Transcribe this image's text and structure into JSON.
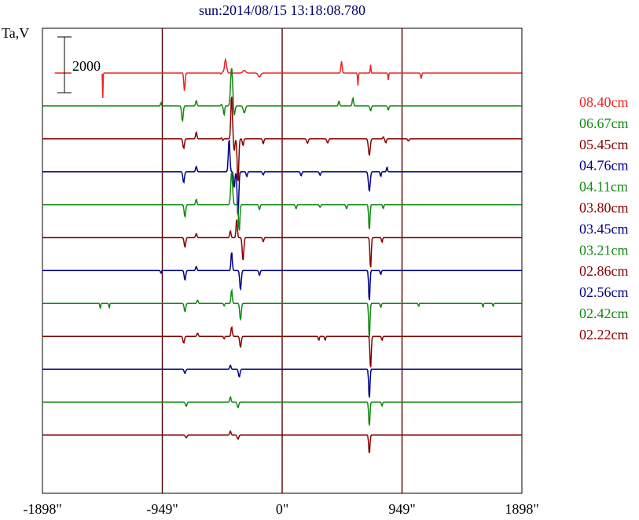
{
  "chart_data": {
    "type": "line",
    "title": "sun:2014/08/15 13:18:08.780",
    "ylabel": "Ta,V",
    "scale_bar_label": "2000",
    "x_ticks": [
      {
        "value": -1898,
        "label": "-1898\""
      },
      {
        "value": -949,
        "label": "-949\""
      },
      {
        "value": 0,
        "label": "0\""
      },
      {
        "value": 949,
        "label": "949\""
      },
      {
        "value": 1898,
        "label": "1898\""
      }
    ],
    "xlim": [
      -1898,
      1898
    ],
    "vertical_gridlines_at": [
      -949,
      0,
      949
    ],
    "colors": {
      "red": "#ee2222",
      "green": "#118811",
      "darkred": "#880000",
      "blue": "#000088",
      "title": "#000066",
      "axis": "#000000",
      "grid": "#550000"
    },
    "series": [
      {
        "name": "08.40cm",
        "color": "red",
        "features": [
          [
            -1420,
            -900,
            0.02
          ],
          [
            -774,
            -650,
            0.05
          ],
          [
            -460,
            -120,
            0.05
          ],
          [
            -485,
            -30,
            0.03
          ],
          [
            -470,
            25,
            0.04
          ],
          [
            -450,
            500,
            0.09
          ],
          [
            -300,
            100,
            0.11
          ],
          [
            -180,
            -140,
            0.1
          ],
          [
            470,
            420,
            0.05
          ],
          [
            600,
            -450,
            0.03
          ],
          [
            700,
            300,
            0.03
          ],
          [
            840,
            -250,
            0.03
          ],
          [
            1100,
            -200,
            0.04
          ]
        ]
      },
      {
        "name": "06.67cm",
        "color": "green",
        "features": [
          [
            -960,
            150,
            0.03
          ],
          [
            -790,
            -550,
            0.06
          ],
          [
            -680,
            200,
            0.05
          ],
          [
            -460,
            -350,
            0.04
          ],
          [
            -480,
            60,
            0.05
          ],
          [
            -470,
            -40,
            0.04
          ],
          [
            -400,
            1400,
            0.08
          ],
          [
            -380,
            -380,
            0.06
          ],
          [
            -300,
            -250,
            0.08
          ],
          [
            450,
            180,
            0.05
          ],
          [
            560,
            300,
            0.05
          ],
          [
            700,
            -180,
            0.05
          ],
          [
            840,
            -150,
            0.05
          ]
        ]
      },
      {
        "name": "05.45cm",
        "color": "darkred",
        "features": [
          [
            -780,
            -350,
            0.06
          ],
          [
            -680,
            250,
            0.05
          ],
          [
            -470,
            -60,
            0.04
          ],
          [
            -480,
            40,
            0.04
          ],
          [
            -400,
            1600,
            0.06
          ],
          [
            -380,
            -450,
            0.05
          ],
          [
            -350,
            -1600,
            0.06
          ],
          [
            -310,
            -250,
            0.05
          ],
          [
            -150,
            -180,
            0.05
          ],
          [
            200,
            -160,
            0.06
          ],
          [
            360,
            -150,
            0.06
          ],
          [
            690,
            -600,
            0.07
          ],
          [
            820,
            -150,
            0.05
          ],
          [
            800,
            80,
            0.04
          ],
          [
            1000,
            -80,
            0.05
          ]
        ]
      },
      {
        "name": "04.76cm",
        "color": "blue",
        "features": [
          [
            -780,
            -400,
            0.06
          ],
          [
            -680,
            200,
            0.05
          ],
          [
            -420,
            1200,
            0.06
          ],
          [
            -380,
            -600,
            0.05
          ],
          [
            -350,
            -1650,
            0.06
          ],
          [
            -280,
            -180,
            0.05
          ],
          [
            -150,
            -120,
            0.05
          ],
          [
            150,
            -150,
            0.05
          ],
          [
            300,
            -130,
            0.05
          ],
          [
            690,
            -700,
            0.07
          ],
          [
            780,
            -180,
            0.04
          ],
          [
            830,
            180,
            0.04
          ]
        ]
      },
      {
        "name": "04.11cm",
        "color": "green",
        "features": [
          [
            -770,
            -450,
            0.06
          ],
          [
            -680,
            200,
            0.05
          ],
          [
            -400,
            1200,
            0.07
          ],
          [
            -340,
            -1000,
            0.05
          ],
          [
            -180,
            -180,
            0.05
          ],
          [
            110,
            -150,
            0.05
          ],
          [
            300,
            -100,
            0.05
          ],
          [
            510,
            -150,
            0.05
          ],
          [
            690,
            -950,
            0.05
          ],
          [
            800,
            -150,
            0.04
          ]
        ]
      },
      {
        "name": "03.80cm",
        "color": "darkred",
        "features": [
          [
            -770,
            -350,
            0.06
          ],
          [
            -680,
            150,
            0.05
          ],
          [
            -410,
            250,
            0.05
          ],
          [
            -360,
            700,
            0.05
          ],
          [
            -310,
            -850,
            0.06
          ],
          [
            -150,
            -150,
            0.05
          ],
          [
            700,
            -1150,
            0.05
          ],
          [
            790,
            -180,
            0.04
          ]
        ]
      },
      {
        "name": "03.45cm",
        "color": "blue",
        "features": [
          [
            -960,
            -120,
            0.03
          ],
          [
            -770,
            -350,
            0.06
          ],
          [
            -680,
            150,
            0.05
          ],
          [
            -400,
            700,
            0.05
          ],
          [
            -330,
            -700,
            0.06
          ],
          [
            -180,
            -180,
            0.05
          ],
          [
            690,
            -1150,
            0.05
          ],
          [
            780,
            -150,
            0.04
          ]
        ]
      },
      {
        "name": "03.21cm",
        "color": "green",
        "features": [
          [
            -1440,
            -200,
            0.03
          ],
          [
            -1370,
            -180,
            0.03
          ],
          [
            -770,
            -300,
            0.06
          ],
          [
            -670,
            120,
            0.05
          ],
          [
            -460,
            -100,
            0.04
          ],
          [
            -400,
            500,
            0.05
          ],
          [
            -330,
            -600,
            0.06
          ],
          [
            690,
            -1300,
            0.05
          ],
          [
            780,
            -150,
            0.04
          ],
          [
            1080,
            -120,
            0.03
          ],
          [
            1590,
            -150,
            0.03
          ],
          [
            1670,
            -120,
            0.03
          ]
        ]
      },
      {
        "name": "02.86cm",
        "color": "darkred",
        "features": [
          [
            -780,
            -250,
            0.06
          ],
          [
            -670,
            120,
            0.05
          ],
          [
            -460,
            -100,
            0.04
          ],
          [
            -400,
            350,
            0.05
          ],
          [
            -330,
            -400,
            0.06
          ],
          [
            290,
            -150,
            0.04
          ],
          [
            340,
            -150,
            0.04
          ],
          [
            700,
            -1200,
            0.05
          ],
          [
            790,
            -150,
            0.04
          ]
        ]
      },
      {
        "name": "02.56cm",
        "color": "blue",
        "features": [
          [
            -770,
            -150,
            0.06
          ],
          [
            -410,
            150,
            0.05
          ],
          [
            -340,
            -280,
            0.06
          ],
          [
            690,
            -1100,
            0.05
          ]
        ]
      },
      {
        "name": "02.42cm",
        "color": "green",
        "features": [
          [
            -760,
            -150,
            0.06
          ],
          [
            -410,
            200,
            0.05
          ],
          [
            -350,
            -200,
            0.06
          ],
          [
            690,
            -900,
            0.05
          ],
          [
            790,
            -150,
            0.04
          ]
        ]
      },
      {
        "name": "02.22cm",
        "color": "darkred",
        "features": [
          [
            -760,
            -100,
            0.06
          ],
          [
            -410,
            150,
            0.05
          ],
          [
            -350,
            -150,
            0.06
          ],
          [
            690,
            -700,
            0.05
          ]
        ]
      }
    ]
  }
}
